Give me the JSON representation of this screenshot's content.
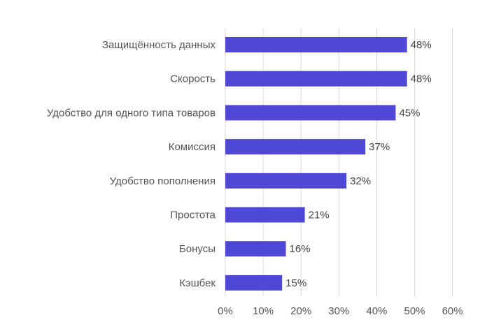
{
  "chart_data": {
    "type": "bar",
    "orientation": "horizontal",
    "categories": [
      "Защищённость данных",
      "Скорость",
      "Удобство для одного типа товаров",
      "Комиссия",
      "Удобство пополнения",
      "Простота",
      "Бонусы",
      "Кэшбек"
    ],
    "values": [
      48,
      48,
      45,
      37,
      32,
      21,
      16,
      15
    ],
    "value_labels": [
      "48%",
      "48%",
      "45%",
      "37%",
      "32%",
      "21%",
      "16%",
      "15%"
    ],
    "xlim": [
      0,
      60
    ],
    "xticks": [
      0,
      10,
      20,
      30,
      40,
      50,
      60
    ],
    "xtick_labels": [
      "0%",
      "10%",
      "20%",
      "30%",
      "40%",
      "50%",
      "60%"
    ],
    "title": "",
    "xlabel": "",
    "ylabel": "",
    "grid": "vertical",
    "bar_color": "#4f47d5"
  }
}
